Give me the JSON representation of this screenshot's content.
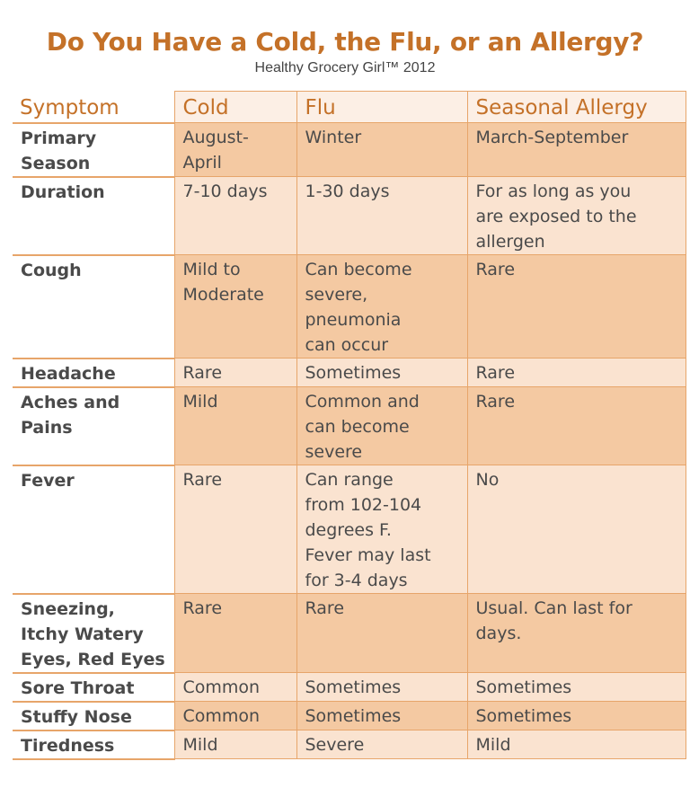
{
  "title": "Do You Have a Cold, the Flu, or an Allergy?",
  "subtitle": "Healthy Grocery Girl™ 2012",
  "colors": {
    "accent": "#c47128",
    "dark_row": "#f4c9a2",
    "light_row": "#fae3d0",
    "border": "#e7a56a"
  },
  "table": {
    "headers": [
      "Symptom",
      "Cold",
      "Flu",
      "Seasonal Allergy"
    ],
    "rows": [
      {
        "symptom": "Primary\nSeason",
        "cold": "August-\nApril",
        "flu": "Winter",
        "allergy": "March-September"
      },
      {
        "symptom": "Duration",
        "cold": "7-10 days",
        "flu": "1-30 days",
        "allergy": "For as long as you\nare exposed to the\nallergen"
      },
      {
        "symptom": "Cough",
        "cold": "Mild to\nModerate",
        "flu": "Can become\nsevere,\npneumonia\ncan occur",
        "allergy": "Rare"
      },
      {
        "symptom": "Headache",
        "cold": "Rare",
        "flu": "Sometimes",
        "allergy": "Rare"
      },
      {
        "symptom": "Aches and\nPains",
        "cold": "Mild",
        "flu": "Common and\ncan become\nsevere",
        "allergy": "Rare"
      },
      {
        "symptom": "Fever",
        "cold": "Rare",
        "flu": "Can range\nfrom 102-104\ndegrees F.\nFever may last\nfor 3-4 days",
        "allergy": "No"
      },
      {
        "symptom": "Sneezing,\nItchy Watery\nEyes, Red Eyes",
        "cold": "Rare",
        "flu": "Rare",
        "allergy": "Usual. Can last for\ndays."
      },
      {
        "symptom": "Sore Throat",
        "cold": "Common",
        "flu": "Sometimes",
        "allergy": "Sometimes"
      },
      {
        "symptom": "Stuffy Nose",
        "cold": "Common",
        "flu": "Sometimes",
        "allergy": "Sometimes"
      },
      {
        "symptom": "Tiredness",
        "cold": "Mild",
        "flu": "Severe",
        "allergy": "Mild"
      }
    ]
  }
}
